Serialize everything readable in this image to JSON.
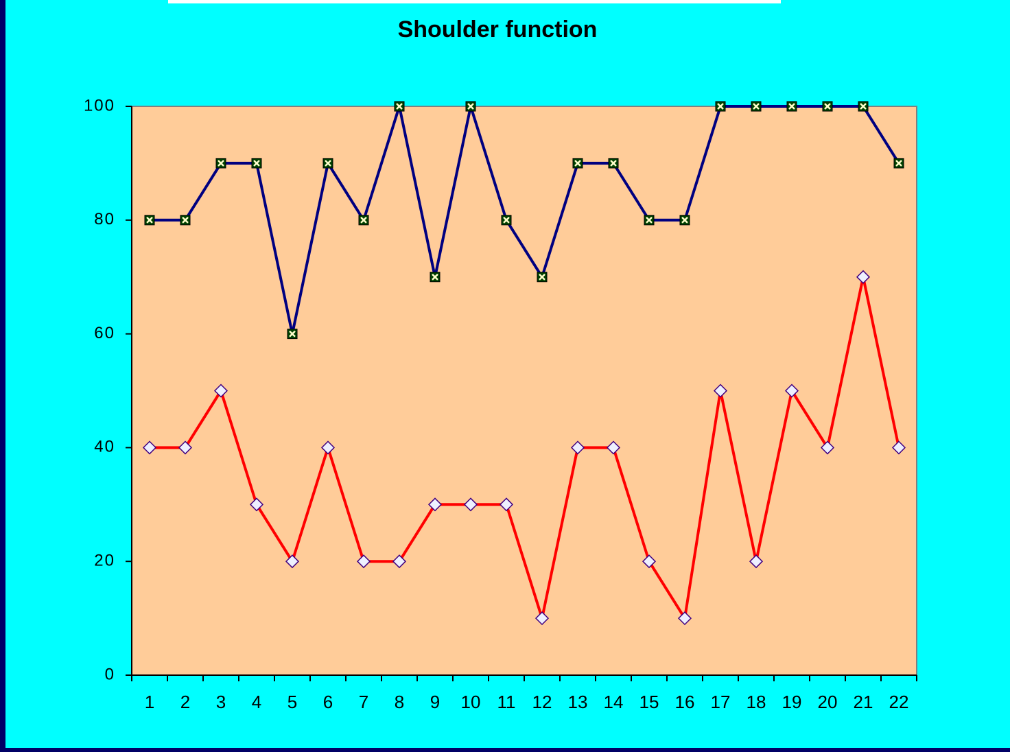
{
  "chart_data": {
    "type": "line",
    "title": "Shoulder function",
    "categories": [
      "1",
      "2",
      "3",
      "4",
      "5",
      "6",
      "7",
      "8",
      "9",
      "10",
      "11",
      "12",
      "13",
      "14",
      "15",
      "16",
      "17",
      "18",
      "19",
      "20",
      "21",
      "22"
    ],
    "series": [
      {
        "color": "#000080",
        "marker": "square",
        "values": [
          80,
          80,
          90,
          90,
          60,
          90,
          80,
          100,
          70,
          100,
          80,
          70,
          90,
          90,
          80,
          80,
          100,
          100,
          100,
          100,
          100,
          90
        ]
      },
      {
        "color": "#ff0000",
        "marker": "diamond",
        "values": [
          40,
          40,
          50,
          30,
          20,
          40,
          20,
          20,
          30,
          30,
          30,
          10,
          40,
          40,
          20,
          10,
          50,
          20,
          50,
          40,
          70,
          40
        ]
      }
    ],
    "ylim": [
      0,
      100
    ],
    "yticks": [
      0,
      20,
      40,
      60,
      80,
      100
    ],
    "grid": false
  }
}
